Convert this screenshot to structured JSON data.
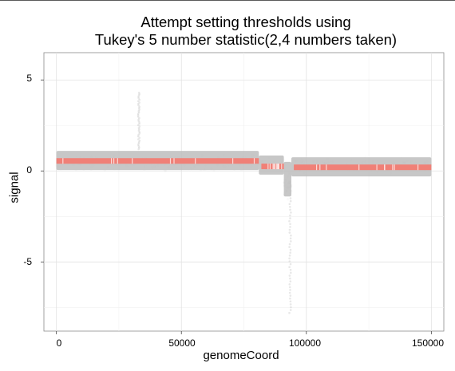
{
  "chart_data": {
    "type": "scatter",
    "title": "Attempt setting thresholds using",
    "subtitle": "Tukey's 5 number statistic(2,4 numbers taken)",
    "xlabel": "genomeCoord",
    "ylabel": "signal",
    "xlim": [
      -5000,
      155000
    ],
    "ylim": [
      -8.8,
      6.5
    ],
    "x_ticks": [
      0,
      50000,
      100000,
      150000
    ],
    "x_tick_labels": [
      "0",
      "50000",
      "100000",
      "150000"
    ],
    "y_ticks": [
      5,
      0,
      -5
    ],
    "y_tick_labels": [
      "5",
      "0",
      "-5"
    ],
    "grid": true,
    "background": "#ffffff",
    "series": [
      {
        "kind": "raw",
        "color": "#bdbdbd",
        "segments": [
          {
            "x": [
              0,
              81000
            ],
            "center": 0.5,
            "band_low": 0.05,
            "band_high": 1.1
          },
          {
            "x": [
              81000,
              91000
            ],
            "center": 0.3,
            "band_low": -0.2,
            "band_high": 0.85
          },
          {
            "x": [
              91000,
              94000
            ],
            "center": -0.8,
            "band_low": -1.4,
            "band_high": 0.5
          },
          {
            "x": [
              94000,
              150000
            ],
            "center": 0.25,
            "band_low": -0.3,
            "band_high": 0.75
          }
        ],
        "outliers": [
          {
            "x": 33000,
            "y_min": 1.2,
            "y_max": 4.3
          },
          {
            "x": 93500,
            "y_min": -7.8,
            "y_max": -1.5
          }
        ]
      },
      {
        "kind": "threshold",
        "color": "#f08077",
        "segments": [
          {
            "x": [
              0,
              81000
            ],
            "y": 0.55
          },
          {
            "x": [
              82000,
              91000
            ],
            "y": 0.25
          },
          {
            "x": [
              95000,
              150000
            ],
            "y": 0.2
          }
        ]
      }
    ]
  }
}
